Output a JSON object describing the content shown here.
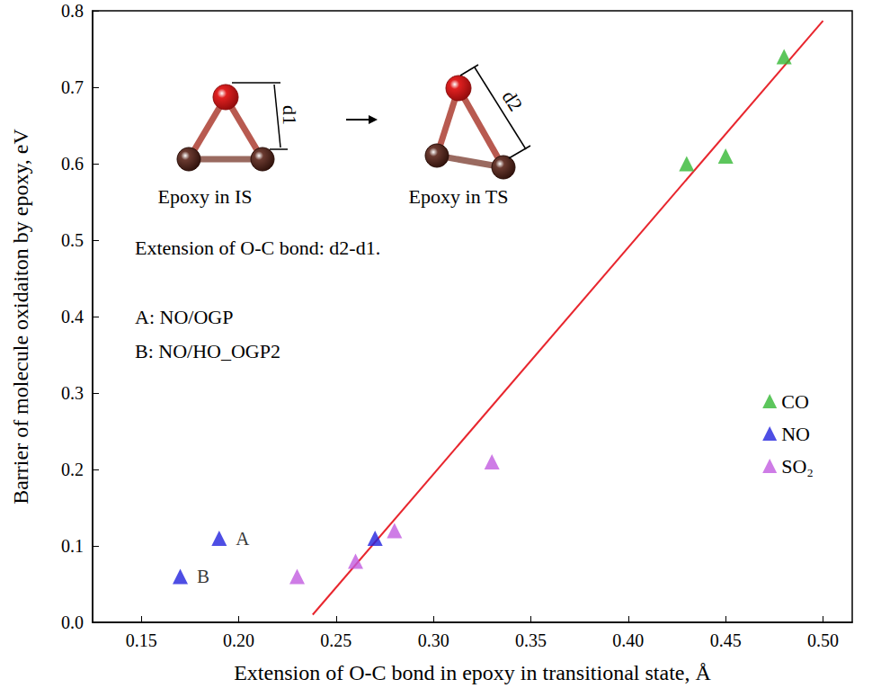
{
  "chart_data": {
    "type": "scatter",
    "x_label": "Extension of O-C bond in epoxy in transitional state, Å",
    "y_label": "Barrier of molecule oxidaiton by epoxy, eV",
    "xlim": [
      0.125,
      0.515
    ],
    "xticks": [
      0.15,
      {
        "value": 0.2,
        "label": "0.20"
      },
      0.25,
      {
        "value": 0.3,
        "label": "0.30"
      },
      0.35,
      {
        "value": 0.4,
        "label": "0.40"
      },
      0.45,
      {
        "value": 0.5,
        "label": "0.50"
      }
    ],
    "ylim": [
      0,
      0.8
    ],
    "yticks": [
      {
        "value": 0,
        "label": "0.0"
      },
      0.1,
      0.2,
      0.3,
      0.4,
      0.5,
      0.6,
      0.7,
      0.8
    ],
    "grid": false,
    "legend": "lower right",
    "series": [
      {
        "name": "CO",
        "color": "#33b833",
        "marker": "triangle",
        "x": [
          0.43,
          0.45,
          0.48
        ],
        "values": [
          0.6,
          0.61,
          0.74
        ]
      },
      {
        "name": "NO",
        "color": "#2222dd",
        "marker": "triangle",
        "x": [
          0.17,
          0.19,
          0.27
        ],
        "values": [
          0.06,
          0.11,
          0.11
        ],
        "point_labels": [
          "B",
          "A",
          null
        ]
      },
      {
        "name": "SO₂",
        "color": "#c25be0",
        "marker": "triangle",
        "x": [
          0.23,
          0.26,
          0.28,
          0.33
        ],
        "values": [
          0.06,
          0.08,
          0.12,
          0.21
        ]
      }
    ],
    "fit_line": {
      "color": "#e8262e",
      "x": [
        0.238,
        0.5
      ],
      "values": [
        0.01,
        0.787
      ]
    },
    "annotations": [
      "Extension of O-C bond: d2-d1.",
      "A: NO/OGP",
      "B: NO/HO_OGP2"
    ],
    "inset": {
      "before": "Epoxy in IS",
      "after": "Epoxy in TS",
      "d1": "d1",
      "d2": "d2"
    }
  }
}
